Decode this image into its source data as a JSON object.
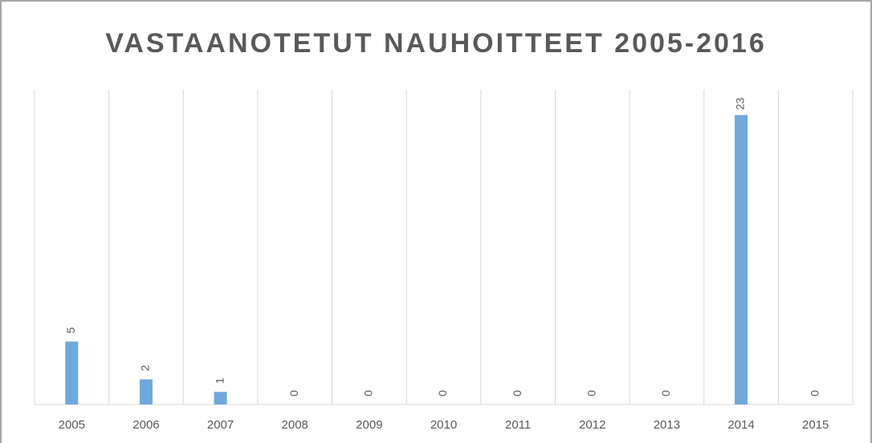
{
  "chart_data": {
    "type": "bar",
    "title": "VASTAANOTETUT NAUHOITTEET 2005-2016",
    "categories": [
      "2005",
      "2006",
      "2007",
      "2008",
      "2009",
      "2010",
      "2011",
      "2012",
      "2013",
      "2014",
      "2015"
    ],
    "values": [
      5,
      2,
      1,
      0,
      0,
      0,
      0,
      0,
      0,
      23,
      0
    ],
    "color": "#6fa8dc",
    "ylim": [
      0,
      25
    ]
  }
}
